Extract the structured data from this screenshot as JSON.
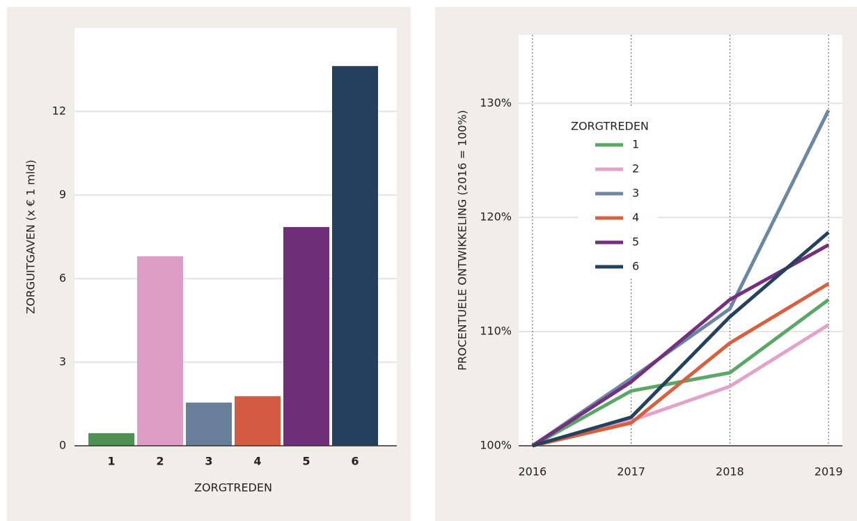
{
  "chart_data": [
    {
      "type": "bar",
      "xlabel": "ZORGTREDEN",
      "ylabel": "ZORGUITGAVEN (x € 1 mld)",
      "categories": [
        "1",
        "2",
        "3",
        "4",
        "5",
        "6"
      ],
      "values": [
        0.45,
        6.8,
        1.55,
        1.78,
        7.85,
        13.63
      ],
      "colors": [
        "#4e8f52",
        "#dd9dc4",
        "#687f99",
        "#d15c42",
        "#6f2f78",
        "#24405c"
      ],
      "ylim": [
        0,
        15
      ],
      "yticks": [
        0,
        3,
        6,
        9,
        12
      ],
      "grid": true
    },
    {
      "type": "line",
      "ylabel": "PROCENTUELE ONTWIKKELING (2016 = 100%)",
      "legend_title": "ZORGTREDEN",
      "legend": "upper left",
      "x": [
        2016,
        2017,
        2018,
        2019
      ],
      "xlim": [
        2015.86,
        2019.14
      ],
      "xticks": [
        2016,
        2017,
        2018,
        2019
      ],
      "ylim": [
        100,
        136
      ],
      "yticks": [
        {
          "value": 100,
          "label": "100%"
        },
        {
          "value": 110,
          "label": "110%"
        },
        {
          "value": 120,
          "label": "120%"
        },
        {
          "value": 130,
          "label": "130%"
        }
      ],
      "grid": true,
      "series": [
        {
          "name": "1",
          "color": "#5aa866",
          "values": [
            100,
            104.8,
            106.4,
            112.8
          ]
        },
        {
          "name": "2",
          "color": "#e2a2cb",
          "values": [
            100,
            102.2,
            105.2,
            110.6
          ]
        },
        {
          "name": "3",
          "color": "#6c87a3",
          "values": [
            100,
            105.9,
            112.0,
            129.4
          ]
        },
        {
          "name": "4",
          "color": "#d6603f",
          "values": [
            100,
            102.0,
            109.0,
            114.2
          ]
        },
        {
          "name": "5",
          "color": "#74307e",
          "values": [
            100,
            105.6,
            112.8,
            117.6
          ]
        },
        {
          "name": "6",
          "color": "#24425e",
          "values": [
            100,
            102.5,
            111.3,
            118.7
          ]
        }
      ]
    }
  ]
}
